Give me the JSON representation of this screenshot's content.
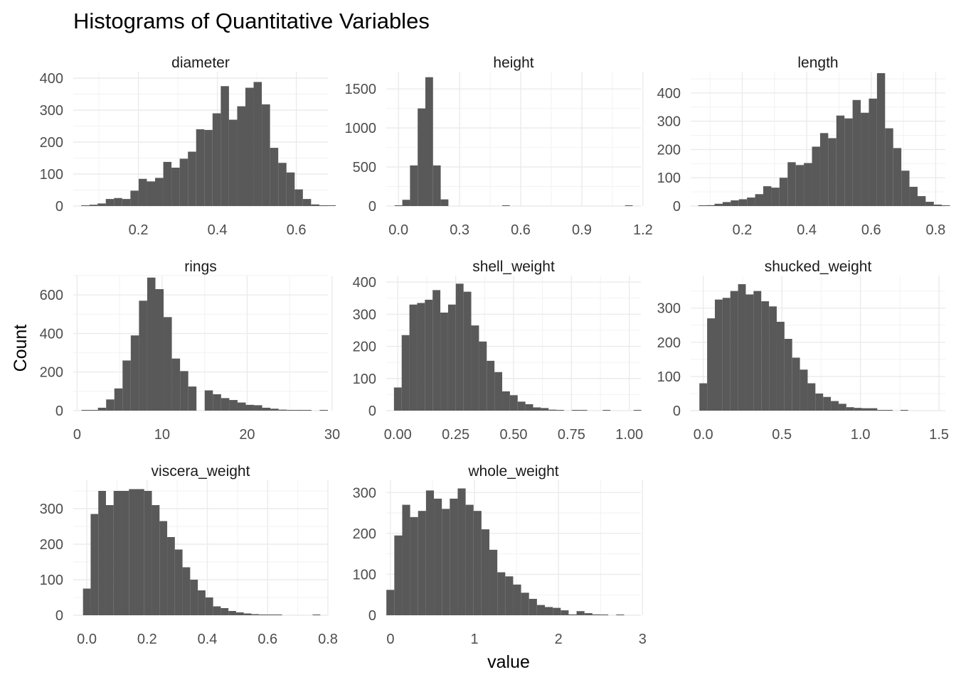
{
  "chart_data": {
    "type": "bar",
    "title": "Histograms of Quantitative Variables",
    "xlabel": "value",
    "ylabel": "Count",
    "grid": true,
    "facets": [
      {
        "name": "diameter",
        "xlim": [
          0.035,
          0.68
        ],
        "ylim": [
          0,
          420
        ],
        "xticks": [
          0.2,
          0.4,
          0.6
        ],
        "xtick_labels": [
          "0.2",
          "0.4",
          "0.6"
        ],
        "yticks": [
          0,
          100,
          200,
          300,
          400
        ],
        "ytick_labels": [
          "0",
          "100",
          "200",
          "300",
          "400"
        ],
        "bin_start": 0.055,
        "bin_width": 0.0208,
        "counts": [
          2,
          4,
          8,
          22,
          25,
          22,
          48,
          85,
          77,
          88,
          138,
          120,
          148,
          170,
          240,
          238,
          290,
          375,
          270,
          312,
          370,
          388,
          318,
          182,
          135,
          105,
          52,
          22,
          5,
          2,
          1
        ]
      },
      {
        "name": "height",
        "xlim": [
          -0.06,
          1.19
        ],
        "ylim": [
          0,
          1720
        ],
        "xticks": [
          0.0,
          0.3,
          0.6,
          0.9,
          1.2
        ],
        "xtick_labels": [
          "0.0",
          "0.3",
          "0.6",
          "0.9",
          "1.2"
        ],
        "yticks": [
          0,
          500,
          1000,
          1500
        ],
        "ytick_labels": [
          "0",
          "500",
          "1000",
          "1500"
        ],
        "bin_start": -0.0188,
        "bin_width": 0.0377,
        "counts": [
          5,
          80,
          520,
          1250,
          1650,
          520,
          85,
          0,
          0,
          0,
          0,
          0,
          0,
          0,
          1,
          0,
          0,
          0,
          0,
          0,
          0,
          0,
          0,
          0,
          0,
          0,
          0,
          0,
          0,
          0,
          1
        ]
      },
      {
        "name": "length",
        "xlim": [
          0.04,
          0.83
        ],
        "ylim": [
          0,
          475
        ],
        "xticks": [
          0.2,
          0.4,
          0.6,
          0.8
        ],
        "xtick_labels": [
          "0.2",
          "0.4",
          "0.6",
          "0.8"
        ],
        "yticks": [
          0,
          100,
          200,
          300,
          400
        ],
        "ytick_labels": [
          "0",
          "100",
          "200",
          "300",
          "400"
        ],
        "bin_start": 0.0635,
        "bin_width": 0.0252,
        "counts": [
          2,
          3,
          8,
          14,
          20,
          24,
          30,
          42,
          70,
          65,
          100,
          155,
          145,
          152,
          210,
          258,
          240,
          320,
          310,
          375,
          330,
          380,
          470,
          275,
          205,
          125,
          68,
          35,
          15,
          5,
          2
        ]
      },
      {
        "name": "rings",
        "xlim": [
          -0.45,
          29.5
        ],
        "ylim": [
          0,
          700
        ],
        "xticks": [
          0,
          10,
          20,
          30
        ],
        "xtick_labels": [
          "0",
          "10",
          "20",
          "30"
        ],
        "yticks": [
          0,
          200,
          400,
          600
        ],
        "ytick_labels": [
          "0",
          "200",
          "400",
          "600"
        ],
        "bin_start": 0.517,
        "bin_width": 0.966,
        "counts": [
          1,
          1,
          15,
          58,
          115,
          260,
          390,
          570,
          690,
          630,
          485,
          270,
          205,
          125,
          0,
          105,
          85,
          65,
          55,
          42,
          30,
          28,
          15,
          10,
          5,
          2,
          2,
          1,
          0,
          1
        ]
      },
      {
        "name": "shell_weight",
        "xlim": [
          -0.05,
          1.05
        ],
        "ylim": [
          0,
          420
        ],
        "xticks": [
          0.0,
          0.25,
          0.5,
          0.75,
          1.0
        ],
        "xtick_labels": [
          "0.00",
          "0.25",
          "0.50",
          "0.75",
          "1.00"
        ],
        "yticks": [
          0,
          100,
          200,
          300,
          400
        ],
        "ytick_labels": [
          "0",
          "100",
          "200",
          "300",
          "400"
        ],
        "bin_start": -0.0167,
        "bin_width": 0.0334,
        "counts": [
          72,
          235,
          330,
          335,
          345,
          375,
          305,
          330,
          395,
          370,
          265,
          215,
          155,
          120,
          60,
          48,
          28,
          20,
          10,
          8,
          3,
          1,
          0,
          2,
          1,
          0,
          0,
          2,
          0,
          0,
          0,
          1
        ]
      },
      {
        "name": "shucked_weight",
        "xlim": [
          -0.08,
          1.54
        ],
        "ylim": [
          0,
          395
        ],
        "xticks": [
          0.0,
          0.5,
          1.0,
          1.5
        ],
        "xtick_labels": [
          "0.0",
          "0.5",
          "1.0",
          "1.5"
        ],
        "yticks": [
          0,
          100,
          200,
          300
        ],
        "ytick_labels": [
          "0",
          "100",
          "200",
          "300"
        ],
        "bin_start": -0.0246,
        "bin_width": 0.0492,
        "counts": [
          80,
          270,
          325,
          330,
          350,
          370,
          340,
          350,
          320,
          305,
          260,
          210,
          155,
          120,
          80,
          50,
          40,
          28,
          20,
          10,
          8,
          7,
          7,
          2,
          1,
          0,
          1,
          0,
          0,
          0,
          0
        ]
      },
      {
        "name": "viscera_weight",
        "xlim": [
          -0.045,
          0.8
        ],
        "ylim": [
          0,
          380
        ],
        "xticks": [
          0.0,
          0.2,
          0.4,
          0.6,
          0.8
        ],
        "xtick_labels": [
          "0.0",
          "0.2",
          "0.4",
          "0.6",
          "0.8"
        ],
        "yticks": [
          0,
          100,
          200,
          300
        ],
        "ytick_labels": [
          "0",
          "100",
          "200",
          "300"
        ],
        "bin_start": -0.0127,
        "bin_width": 0.0254,
        "counts": [
          75,
          285,
          350,
          310,
          350,
          350,
          355,
          355,
          350,
          310,
          265,
          220,
          185,
          135,
          100,
          70,
          50,
          25,
          20,
          12,
          8,
          5,
          3,
          2,
          1,
          1,
          0,
          0,
          0,
          0,
          1
        ]
      },
      {
        "name": "whole_weight",
        "xlim": [
          -0.05,
          2.98
        ],
        "ylim": [
          0,
          330
        ],
        "xticks": [
          0,
          1,
          2,
          3
        ],
        "xtick_labels": [
          "0",
          "1",
          "2",
          "3"
        ],
        "yticks": [
          0,
          100,
          200,
          300
        ],
        "ytick_labels": [
          "0",
          "100",
          "200",
          "300"
        ],
        "bin_start": -0.0485,
        "bin_width": 0.0943,
        "counts": [
          62,
          195,
          270,
          240,
          255,
          305,
          285,
          260,
          285,
          310,
          270,
          255,
          210,
          160,
          105,
          95,
          75,
          55,
          40,
          25,
          20,
          18,
          12,
          2,
          10,
          5,
          2,
          1,
          0,
          1
        ]
      }
    ]
  }
}
